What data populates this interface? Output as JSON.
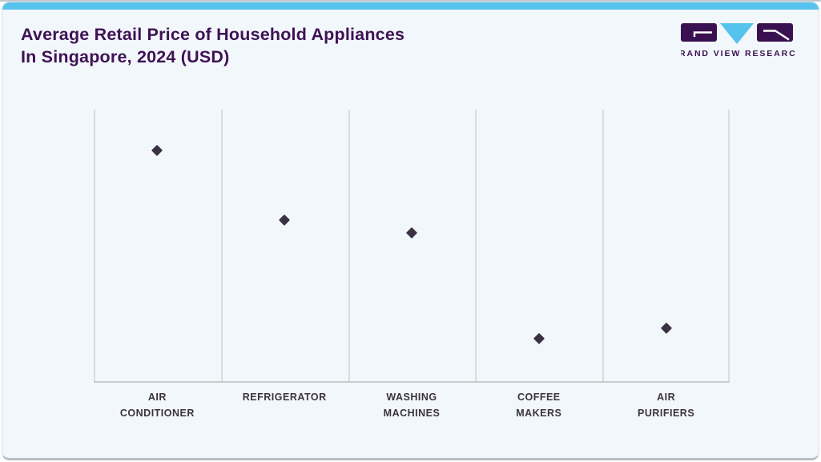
{
  "header": {
    "title_line1": "Average Retail Price of Household Appliances",
    "title_line2": "In Singapore, 2024 (USD)",
    "logo_text": "GRAND VIEW RESEARCH"
  },
  "colors": {
    "accent_bar": "#56c2ee",
    "card_bg": "#f2f7fb",
    "title_text": "#3e1254",
    "logo_purple": "#3a1150",
    "logo_blue": "#56c2ee",
    "marker": "#3a3142",
    "gridline": "#dadcdd",
    "axis_line": "#c9cccd",
    "label_text": "#3b3440"
  },
  "chart_data": {
    "type": "scatter",
    "title": "Average Retail Price of Household Appliances In Singapore, 2024 (USD)",
    "categories": [
      "Air Conditioner",
      "Refrigerator",
      "Washing Machines",
      "Coffee Makers",
      "Air Purifiers"
    ],
    "category_labels": [
      [
        "AIR",
        "CONDITIONER"
      ],
      [
        "REFRIGERATOR"
      ],
      [
        "WASHING",
        "MACHINES"
      ],
      [
        "COFFEE",
        "MAKERS"
      ],
      [
        "AIR",
        "PURIFIERS"
      ]
    ],
    "values": [
      850,
      595,
      550,
      160,
      195
    ],
    "value_fractions_of_plot_height": [
      0.851,
      0.595,
      0.548,
      0.159,
      0.196
    ],
    "xlabel": "",
    "ylabel": "",
    "ylim": [
      0,
      1000
    ],
    "y_axis_labeled": false,
    "grid": "vertical-column-dividers-only",
    "marker_shape": "diamond",
    "legend": "none"
  }
}
